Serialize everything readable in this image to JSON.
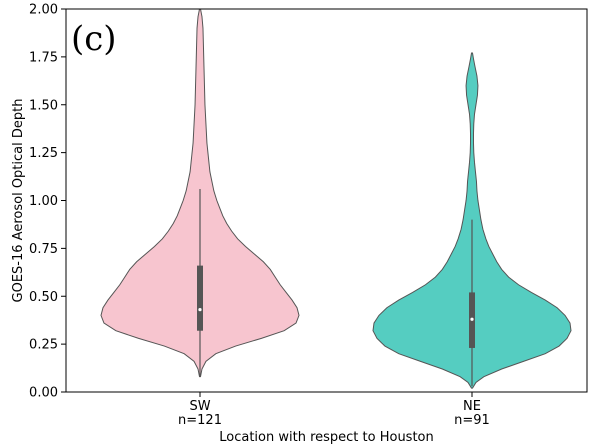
{
  "chart_data": {
    "type": "violin",
    "panel_label": "(c)",
    "xlabel": "Location with respect to Houston",
    "ylabel": "GOES-16 Aerosol Optical Depth",
    "ylim": [
      0.0,
      2.0
    ],
    "yticks": [
      "0.00",
      "0.25",
      "0.50",
      "0.75",
      "1.00",
      "1.25",
      "1.50",
      "1.75",
      "2.00"
    ],
    "grid": false,
    "categories": [
      {
        "name": "SW",
        "count_label": "n=121",
        "color": "#f7c5cf",
        "box": {
          "whisker_low": 0.08,
          "q1": 0.32,
          "median": 0.43,
          "q3": 0.66,
          "whisker_high": 1.06
        },
        "density": [
          [
            0.08,
            0.005
          ],
          [
            0.12,
            0.02
          ],
          [
            0.16,
            0.06
          ],
          [
            0.2,
            0.16
          ],
          [
            0.24,
            0.36
          ],
          [
            0.28,
            0.62
          ],
          [
            0.32,
            0.85
          ],
          [
            0.36,
            0.97
          ],
          [
            0.4,
            1.0
          ],
          [
            0.44,
            0.98
          ],
          [
            0.48,
            0.93
          ],
          [
            0.52,
            0.87
          ],
          [
            0.56,
            0.81
          ],
          [
            0.6,
            0.76
          ],
          [
            0.64,
            0.71
          ],
          [
            0.68,
            0.64
          ],
          [
            0.72,
            0.55
          ],
          [
            0.76,
            0.46
          ],
          [
            0.8,
            0.38
          ],
          [
            0.84,
            0.32
          ],
          [
            0.88,
            0.27
          ],
          [
            0.92,
            0.23
          ],
          [
            0.96,
            0.2
          ],
          [
            1.0,
            0.17
          ],
          [
            1.05,
            0.14
          ],
          [
            1.1,
            0.12
          ],
          [
            1.15,
            0.1
          ],
          [
            1.2,
            0.09
          ],
          [
            1.3,
            0.07
          ],
          [
            1.4,
            0.06
          ],
          [
            1.5,
            0.05
          ],
          [
            1.6,
            0.045
          ],
          [
            1.7,
            0.04
          ],
          [
            1.8,
            0.035
          ],
          [
            1.9,
            0.03
          ],
          [
            1.96,
            0.02
          ],
          [
            2.0,
            0.005
          ]
        ]
      },
      {
        "name": "NE",
        "count_label": "n=91",
        "color": "#55cdc1",
        "box": {
          "whisker_low": 0.03,
          "q1": 0.23,
          "median": 0.38,
          "q3": 0.52,
          "whisker_high": 0.9
        },
        "density": [
          [
            0.02,
            0.005
          ],
          [
            0.05,
            0.04
          ],
          [
            0.08,
            0.12
          ],
          [
            0.12,
            0.3
          ],
          [
            0.16,
            0.52
          ],
          [
            0.2,
            0.74
          ],
          [
            0.24,
            0.88
          ],
          [
            0.28,
            0.96
          ],
          [
            0.32,
            1.0
          ],
          [
            0.36,
            0.99
          ],
          [
            0.4,
            0.94
          ],
          [
            0.44,
            0.86
          ],
          [
            0.48,
            0.74
          ],
          [
            0.52,
            0.6
          ],
          [
            0.56,
            0.47
          ],
          [
            0.6,
            0.37
          ],
          [
            0.64,
            0.3
          ],
          [
            0.68,
            0.25
          ],
          [
            0.72,
            0.21
          ],
          [
            0.76,
            0.17
          ],
          [
            0.8,
            0.14
          ],
          [
            0.85,
            0.11
          ],
          [
            0.9,
            0.09
          ],
          [
            0.95,
            0.075
          ],
          [
            1.0,
            0.06
          ],
          [
            1.05,
            0.05
          ],
          [
            1.1,
            0.045
          ],
          [
            1.15,
            0.035
          ],
          [
            1.2,
            0.025
          ],
          [
            1.25,
            0.018
          ],
          [
            1.3,
            0.015
          ],
          [
            1.35,
            0.015
          ],
          [
            1.4,
            0.018
          ],
          [
            1.45,
            0.025
          ],
          [
            1.5,
            0.04
          ],
          [
            1.55,
            0.055
          ],
          [
            1.6,
            0.06
          ],
          [
            1.65,
            0.05
          ],
          [
            1.7,
            0.03
          ],
          [
            1.74,
            0.015
          ],
          [
            1.77,
            0.005
          ]
        ]
      }
    ]
  }
}
